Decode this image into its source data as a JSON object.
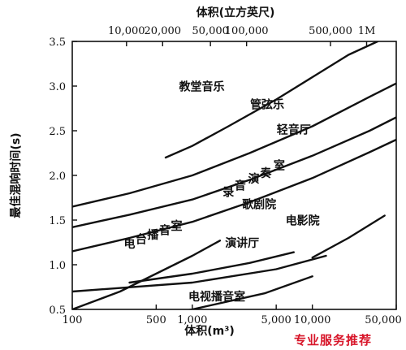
{
  "chart_data": {
    "type": "line",
    "top_axis": {
      "title": "体积(立方英尺)",
      "ticks": [
        {
          "label": "10,000",
          "m3": 283
        },
        {
          "label": "20,000",
          "m3": 566
        },
        {
          "label": "50,000",
          "m3": 1416
        },
        {
          "label": "100,000",
          "m3": 2832
        },
        {
          "label": "500,000",
          "m3": 14158
        },
        {
          "label": "1M",
          "m3": 28317
        }
      ]
    },
    "xlabel": "体积(m³)",
    "xscale": "log",
    "xlim": [
      100,
      50000
    ],
    "xticks": [
      {
        "label": "100",
        "value": 100
      },
      {
        "label": "500",
        "value": 500
      },
      {
        "label": "1,000",
        "value": 1000
      },
      {
        "label": "5,000",
        "value": 5000
      },
      {
        "label": "10,000",
        "value": 10000
      },
      {
        "label": "50,000",
        "value": 50000
      }
    ],
    "ylabel": "最佳混响时间(s)",
    "ylim": [
      0.5,
      3.5
    ],
    "yticks": [
      {
        "label": "0.5",
        "value": 0.5
      },
      {
        "label": "1.0",
        "value": 1.0
      },
      {
        "label": "1.5",
        "value": 1.5
      },
      {
        "label": "2.0",
        "value": 2.0
      },
      {
        "label": "2.5",
        "value": 2.5
      },
      {
        "label": "3.0",
        "value": 3.0
      },
      {
        "label": "3.5",
        "value": 3.5
      }
    ],
    "grid": false,
    "series": [
      {
        "name": "教堂音乐",
        "x": [
          600,
          1000,
          2000,
          5000,
          10000,
          20000,
          35000
        ],
        "y": [
          2.2,
          2.33,
          2.55,
          2.85,
          3.1,
          3.35,
          3.5
        ]
      },
      {
        "name": "管弦乐",
        "x": [
          100,
          300,
          1000,
          3000,
          10000,
          30000,
          50000
        ],
        "y": [
          1.65,
          1.8,
          2.0,
          2.25,
          2.55,
          2.88,
          3.03
        ]
      },
      {
        "name": "轻音厅",
        "x": [
          100,
          300,
          1000,
          3000,
          10000,
          30000,
          50000
        ],
        "y": [
          1.42,
          1.56,
          1.73,
          1.95,
          2.22,
          2.5,
          2.65
        ]
      },
      {
        "name": "录音演奏室",
        "x": [
          100,
          300,
          1000,
          3000,
          10000,
          30000,
          50000
        ],
        "y": [
          1.15,
          1.3,
          1.48,
          1.7,
          1.97,
          2.26,
          2.4
        ]
      },
      {
        "name": "电影院",
        "x": [
          10000,
          20000,
          40000
        ],
        "y": [
          1.08,
          1.3,
          1.55
        ]
      },
      {
        "name": "电台播音室",
        "x": [
          100,
          250,
          500,
          1000,
          1700
        ],
        "y": [
          0.5,
          0.7,
          0.9,
          1.1,
          1.27
        ]
      },
      {
        "name": "歌剧院",
        "x": [
          100,
          1000,
          5000,
          13000
        ],
        "y": [
          0.7,
          0.8,
          0.95,
          1.1
        ]
      },
      {
        "name": "演讲厅",
        "x": [
          300,
          1000,
          3000,
          7000
        ],
        "y": [
          0.8,
          0.9,
          1.02,
          1.14
        ]
      },
      {
        "name": "电视播音室",
        "x": [
          250,
          1000,
          4000,
          10000
        ],
        "y": [
          0.38,
          0.5,
          0.68,
          0.87
        ]
      }
    ],
    "curve_labels": [
      {
        "text": "教堂音乐",
        "x": 1200,
        "y": 2.95
      },
      {
        "text": "管弦乐",
        "x": 4200,
        "y": 2.75
      },
      {
        "text": "轻音厅",
        "x": 7000,
        "y": 2.47
      },
      {
        "text": "录",
        "x": 2000,
        "y": 1.77
      },
      {
        "text": "音",
        "x": 2500,
        "y": 1.84
      },
      {
        "text": "演",
        "x": 3250,
        "y": 1.92
      },
      {
        "text": "奏",
        "x": 4100,
        "y": 1.98
      },
      {
        "text": "室",
        "x": 5300,
        "y": 2.07
      },
      {
        "text": "歌剧院",
        "x": 3600,
        "y": 1.63
      },
      {
        "text": "电影院",
        "x": 8300,
        "y": 1.45
      },
      {
        "text": "演讲厅",
        "x": 2600,
        "y": 1.2
      },
      {
        "text": "电视播音室",
        "x": 1600,
        "y": 0.6
      },
      {
        "text": "电",
        "x": 300,
        "y": 1.19
      },
      {
        "text": "台",
        "x": 375,
        "y": 1.24
      },
      {
        "text": "播",
        "x": 470,
        "y": 1.29
      },
      {
        "text": "音",
        "x": 590,
        "y": 1.34
      },
      {
        "text": "室",
        "x": 740,
        "y": 1.39
      }
    ],
    "watermark": "专业服务推荐"
  }
}
